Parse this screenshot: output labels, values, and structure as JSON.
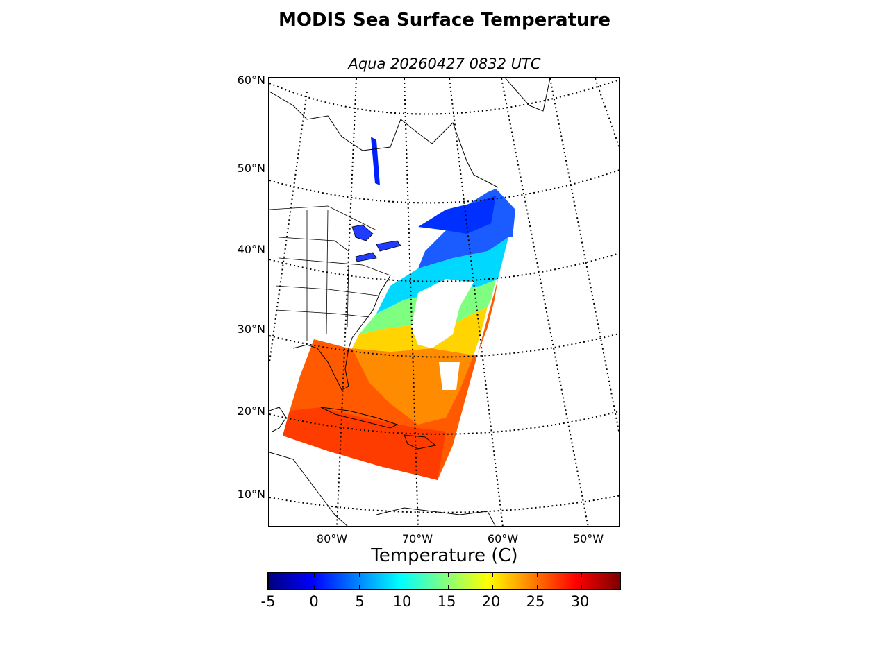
{
  "title": "MODIS Sea Surface Temperature",
  "subtitle": "Aqua 20260427 0832 UTC",
  "map": {
    "lat_labels": [
      "60°N",
      "50°N",
      "40°N",
      "30°N",
      "20°N",
      "10°N"
    ],
    "lon_labels": [
      "80°W",
      "70°W",
      "60°W",
      "50°W"
    ],
    "grid": "dotted",
    "land_color": "#ffffff",
    "coastline_color": "#000000"
  },
  "colorbar": {
    "title": "Temperature (C)",
    "ticks": [
      "-5",
      "0",
      "5",
      "10",
      "15",
      "20",
      "25",
      "30"
    ],
    "range": [
      -5,
      35
    ],
    "colormap": "jet"
  }
}
